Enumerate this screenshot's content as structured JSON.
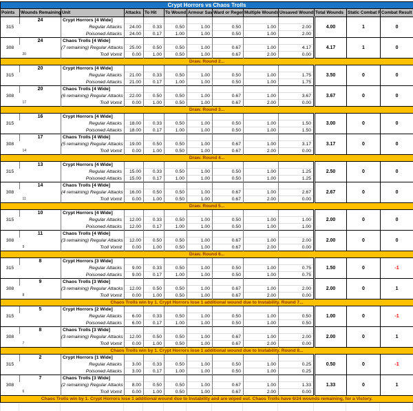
{
  "title": "Crypt Horrors vs Chaos Trolls",
  "colors": {
    "title_bg": "#1b75c6",
    "header_bg": "#bfbfbf",
    "banner_bg": "#ffc000",
    "banner_text": "#8b3100",
    "negative": "#ff0000"
  },
  "columns": [
    "Points",
    "Wounds Remaining",
    "Unit",
    "Attacks",
    "To Hit",
    "To Wound",
    "Armour Save",
    "Ward or Regen",
    "Multiple Wounds",
    "Unsaved Wounds",
    "Total Wounds",
    "Static Combat Res",
    "Combat Result"
  ],
  "rounds": [
    {
      "crypt": {
        "points": "315",
        "wounds": "24",
        "wounds_after": "",
        "unit": "Crypt Horrors [4 Wide]",
        "rows": [
          {
            "label": "Regular Attacks",
            "values": [
              "24.00",
              "0.33",
              "0.50",
              "1.00",
              "0.50",
              "1.00",
              "2.00"
            ]
          },
          {
            "label": "Poisoned Attacks",
            "values": [
              "24.00",
              "0.17",
              "1.00",
              "1.00",
              "0.50",
              "1.00",
              "2.00"
            ]
          }
        ],
        "total": "4.00",
        "static": "1",
        "result": "0"
      },
      "trolls": {
        "points": "308",
        "wounds": "24",
        "wounds_after": "20",
        "unit": "Chaos Trolls [4 Wide]",
        "rows": [
          {
            "label": "(7 remaining) Regular Attacks",
            "values": [
              "25.00",
              "0.50",
              "0.50",
              "1.00",
              "0.67",
              "1.00",
              "4.17"
            ]
          },
          {
            "label": "Troll Vomit",
            "values": [
              "0.00",
              "1.00",
              "0.50",
              "1.00",
              "0.67",
              "2.00",
              "0.00"
            ]
          }
        ],
        "total": "4.17",
        "static": "1",
        "result": "0"
      },
      "banner": "Draw. Round 2..."
    },
    {
      "crypt": {
        "points": "315",
        "wounds": "20",
        "wounds_after": "",
        "unit": "Crypt Horrors [4 Wide]",
        "rows": [
          {
            "label": "Regular Attacks",
            "values": [
              "21.00",
              "0.33",
              "0.50",
              "1.00",
              "0.50",
              "1.00",
              "1.75"
            ]
          },
          {
            "label": "Poisoned Attacks",
            "values": [
              "21.00",
              "0.17",
              "1.00",
              "1.00",
              "0.50",
              "1.00",
              "1.75"
            ]
          }
        ],
        "total": "3.50",
        "static": "0",
        "result": "0"
      },
      "trolls": {
        "points": "308",
        "wounds": "20",
        "wounds_after": "17",
        "unit": "Chaos Trolls [4 Wide]",
        "rows": [
          {
            "label": "(6 remaining) Regular Attacks",
            "values": [
              "22.00",
              "0.50",
              "0.50",
              "1.00",
              "0.67",
              "1.00",
              "3.67"
            ]
          },
          {
            "label": "Troll Vomit",
            "values": [
              "0.00",
              "1.00",
              "0.50",
              "1.00",
              "0.67",
              "2.00",
              "0.00"
            ]
          }
        ],
        "total": "3.67",
        "static": "0",
        "result": "0"
      },
      "banner": "Draw. Round 3..."
    },
    {
      "crypt": {
        "points": "315",
        "wounds": "16",
        "wounds_after": "",
        "unit": "Crypt Horrors [4 Wide]",
        "rows": [
          {
            "label": "Regular Attacks",
            "values": [
              "18.00",
              "0.33",
              "0.50",
              "1.00",
              "0.50",
              "1.00",
              "1.50"
            ]
          },
          {
            "label": "Poisoned Attacks",
            "values": [
              "18.00",
              "0.17",
              "1.00",
              "1.00",
              "0.50",
              "1.00",
              "1.50"
            ]
          }
        ],
        "total": "3.00",
        "static": "0",
        "result": "0"
      },
      "trolls": {
        "points": "308",
        "wounds": "17",
        "wounds_after": "14",
        "unit": "Chaos Trolls [4 Wide]",
        "rows": [
          {
            "label": "(5 remaining) Regular Attacks",
            "values": [
              "19.00",
              "0.50",
              "0.50",
              "1.00",
              "0.67",
              "1.00",
              "3.17"
            ]
          },
          {
            "label": "Troll Vomit",
            "values": [
              "0.00",
              "1.00",
              "0.50",
              "1.00",
              "0.67",
              "2.00",
              "0.00"
            ]
          }
        ],
        "total": "3.17",
        "static": "0",
        "result": "0"
      },
      "banner": "Draw. Round 4..."
    },
    {
      "crypt": {
        "points": "315",
        "wounds": "13",
        "wounds_after": "",
        "unit": "Crypt Horrors [4 Wide]",
        "rows": [
          {
            "label": "Regular Attacks",
            "values": [
              "15.00",
              "0.33",
              "0.50",
              "1.00",
              "0.50",
              "1.00",
              "1.25"
            ]
          },
          {
            "label": "Poisoned Attacks",
            "values": [
              "15.00",
              "0.17",
              "1.00",
              "1.00",
              "0.50",
              "1.00",
              "1.25"
            ]
          }
        ],
        "total": "2.50",
        "static": "0",
        "result": "0"
      },
      "trolls": {
        "points": "308",
        "wounds": "14",
        "wounds_after": "11",
        "unit": "Chaos Trolls [4 Wide]",
        "rows": [
          {
            "label": "(4 remaining) Regular Attacks",
            "values": [
              "16.00",
              "0.50",
              "0.50",
              "1.00",
              "0.67",
              "1.00",
              "2.67"
            ]
          },
          {
            "label": "Troll Vomit",
            "values": [
              "0.00",
              "1.00",
              "0.50",
              "1.00",
              "0.67",
              "2.00",
              "0.00"
            ]
          }
        ],
        "total": "2.67",
        "static": "0",
        "result": "0"
      },
      "banner": "Draw. Round 5..."
    },
    {
      "crypt": {
        "points": "315",
        "wounds": "10",
        "wounds_after": "",
        "unit": "Crypt Horrors [4 Wide]",
        "rows": [
          {
            "label": "Regular Attacks",
            "values": [
              "12.00",
              "0.33",
              "0.50",
              "1.00",
              "0.50",
              "1.00",
              "1.00"
            ]
          },
          {
            "label": "Poisoned Attacks",
            "values": [
              "12.00",
              "0.17",
              "1.00",
              "1.00",
              "0.50",
              "1.00",
              "1.00"
            ]
          }
        ],
        "total": "2.00",
        "static": "0",
        "result": "0"
      },
      "trolls": {
        "points": "308",
        "wounds": "11",
        "wounds_after": "9",
        "unit": "Chaos Trolls [4 Wide]",
        "rows": [
          {
            "label": "(3 remaining) Regular Attacks",
            "values": [
              "12.00",
              "0.50",
              "0.50",
              "1.00",
              "0.67",
              "1.00",
              "2.00"
            ]
          },
          {
            "label": "Troll Vomit",
            "values": [
              "0.00",
              "1.00",
              "0.50",
              "1.00",
              "0.67",
              "2.00",
              "0.00"
            ]
          }
        ],
        "total": "2.00",
        "static": "0",
        "result": "0"
      },
      "banner": "Draw. Round 6..."
    },
    {
      "crypt": {
        "points": "315",
        "wounds": "8",
        "wounds_after": "",
        "unit": "Crypt Horrors [3 Wide]",
        "rows": [
          {
            "label": "Regular Attacks",
            "values": [
              "9.00",
              "0.33",
              "0.50",
              "1.00",
              "0.50",
              "1.00",
              "0.75"
            ]
          },
          {
            "label": "Poisoned Attacks",
            "values": [
              "9.00",
              "0.17",
              "1.00",
              "1.00",
              "0.50",
              "1.00",
              "0.75"
            ]
          }
        ],
        "total": "1.50",
        "static": "0",
        "result": "-1"
      },
      "trolls": {
        "points": "308",
        "wounds": "9",
        "wounds_after": "8",
        "unit": "Chaos Trolls [3 Wide]",
        "rows": [
          {
            "label": "(3 remaining) Regular Attacks",
            "values": [
              "12.00",
              "0.50",
              "0.50",
              "1.00",
              "0.67",
              "1.00",
              "2.00"
            ]
          },
          {
            "label": "Troll Vomit",
            "values": [
              "0.00",
              "1.00",
              "0.50",
              "1.00",
              "0.67",
              "2.00",
              "0.00"
            ]
          }
        ],
        "total": "2.00",
        "static": "0",
        "result": "1"
      },
      "banner": "Chaos Trolls win by 1. Crypt Horrors lose 1 additional wound due to Instability. Round 7..."
    },
    {
      "crypt": {
        "points": "315",
        "wounds": "5",
        "wounds_after": "",
        "unit": "Crypt Horrors [2 Wide]",
        "rows": [
          {
            "label": "Regular Attacks",
            "values": [
              "6.00",
              "0.33",
              "0.50",
              "1.00",
              "0.50",
              "1.00",
              "0.50"
            ]
          },
          {
            "label": "Poisoned Attacks",
            "values": [
              "6.00",
              "0.17",
              "1.00",
              "1.00",
              "0.50",
              "1.00",
              "0.50"
            ]
          }
        ],
        "total": "1.00",
        "static": "0",
        "result": "-1"
      },
      "trolls": {
        "points": "308",
        "wounds": "8",
        "wounds_after": "7",
        "unit": "Chaos Trolls [3 Wide]",
        "rows": [
          {
            "label": "(3 remaining) Regular Attacks",
            "values": [
              "12.00",
              "0.50",
              "0.50",
              "1.00",
              "0.67",
              "1.00",
              "2.00"
            ]
          },
          {
            "label": "Troll Vomit",
            "values": [
              "0.00",
              "1.00",
              "0.50",
              "1.00",
              "0.67",
              "2.00",
              "0.00"
            ]
          }
        ],
        "total": "2.00",
        "static": "0",
        "result": "1"
      },
      "banner": "Chaos Trolls win by 1. Crypt Horrors lose 1 additional wound due to Instability. Round 8..."
    },
    {
      "crypt": {
        "points": "315",
        "wounds": "2",
        "wounds_after": "",
        "unit": "Crypt Horrors [1 Wide]",
        "rows": [
          {
            "label": "Regular Attacks",
            "values": [
              "3.00",
              "0.33",
              "0.50",
              "1.00",
              "0.50",
              "1.00",
              "0.25"
            ]
          },
          {
            "label": "Poisoned Attacks",
            "values": [
              "3.00",
              "0.17",
              "1.00",
              "1.00",
              "0.50",
              "1.00",
              "0.25"
            ]
          }
        ],
        "total": "0.50",
        "static": "0",
        "result": "-1"
      },
      "trolls": {
        "points": "308",
        "wounds": "7",
        "wounds_after": "6",
        "unit": "Chaos Trolls [3 Wide]",
        "rows": [
          {
            "label": "(2 remaining) Regular Attacks",
            "values": [
              "8.00",
              "0.50",
              "0.50",
              "1.00",
              "0.67",
              "1.00",
              "1.33"
            ]
          },
          {
            "label": "Troll Vomit",
            "values": [
              "0.00",
              "1.00",
              "0.50",
              "1.00",
              "0.67",
              "2.00",
              "0.00"
            ]
          }
        ],
        "total": "1.33",
        "static": "0",
        "result": "1"
      },
      "banner": "Chaos Trolls win by 1. Crypt Horrors lose 1 additional wound due to Instability and are wiped out. Chaos Trolls have 6/24 wounds remaining, for a Victory."
    }
  ]
}
